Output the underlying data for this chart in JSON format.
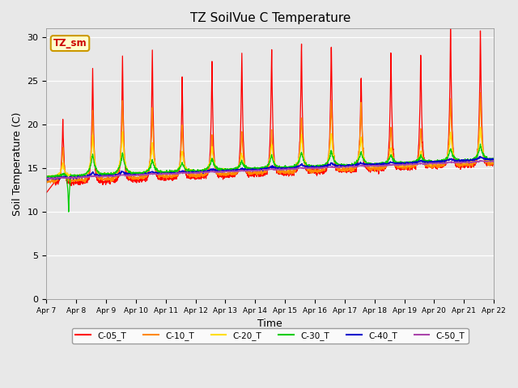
{
  "title": "TZ SoilVue C Temperature",
  "xlabel": "Time",
  "ylabel": "Soil Temperature (C)",
  "ylim": [
    0,
    31
  ],
  "yticks": [
    0,
    5,
    10,
    15,
    20,
    25,
    30
  ],
  "bg_color": "#e8e8e8",
  "annotation_text": "TZ_sm",
  "annotation_box_color": "#ffffcc",
  "annotation_border_color": "#cc9900",
  "annotation_text_color": "#cc0000",
  "series_names": [
    "C-05_T",
    "C-10_T",
    "C-20_T",
    "C-30_T",
    "C-40_T",
    "C-50_T"
  ],
  "series_colors": [
    "#ff0000",
    "#ff8800",
    "#ffdd00",
    "#00cc00",
    "#0000cc",
    "#aa44aa"
  ],
  "x_tick_labels": [
    "Apr 7",
    "Apr 8",
    "Apr 9",
    "Apr 10",
    "Apr 11",
    "Apr 12",
    "Apr 13",
    "Apr 14",
    "Apr 15",
    "Apr 16",
    "Apr 17",
    "Apr 18",
    "Apr 19",
    "Apr 20",
    "Apr 21",
    "Apr 22"
  ],
  "num_days": 15,
  "points_per_day": 144
}
